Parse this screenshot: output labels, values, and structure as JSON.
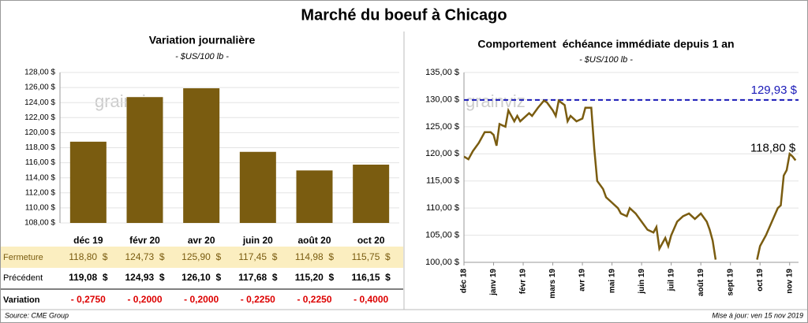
{
  "title": "Marché du boeuf à Chicago",
  "watermark": "grainviz",
  "chart_data": [
    {
      "type": "bar",
      "title": "Variation journalière",
      "subtitle": "- $US/100 lb -",
      "categories": [
        "déc 19",
        "févr 20",
        "avr 20",
        "juin 20",
        "août 20",
        "oct 20"
      ],
      "series": [
        {
          "name": "Fermeture",
          "color": "#7a5c10",
          "values": [
            118.8,
            124.73,
            125.9,
            117.45,
            114.98,
            115.75
          ],
          "value_labels": [
            "118,80  $",
            "124,73  $",
            "125,90  $",
            "117,45  $",
            "114,98  $",
            "115,75  $"
          ]
        }
      ],
      "ylim": [
        108,
        128
      ],
      "yticks": [
        {
          "value": 108,
          "label": "108,00 $"
        },
        {
          "value": 110,
          "label": "110,00 $"
        },
        {
          "value": 112,
          "label": "112,00 $"
        },
        {
          "value": 114,
          "label": "114,00 $"
        },
        {
          "value": 116,
          "label": "116,00 $"
        },
        {
          "value": 118,
          "label": "118,00 $"
        },
        {
          "value": 120,
          "label": "120,00 $"
        },
        {
          "value": 122,
          "label": "122,00 $"
        },
        {
          "value": 124,
          "label": "124,00 $"
        },
        {
          "value": 126,
          "label": "126,00 $"
        },
        {
          "value": 128,
          "label": "128,00 $"
        }
      ],
      "grid": true
    },
    {
      "type": "line",
      "title": "Comportement  échéance immédiate depuis 1 an",
      "subtitle": "- $US/100 lb -",
      "x": [
        0,
        0.15,
        0.3,
        0.5,
        0.7,
        0.9,
        1.0,
        1.1,
        1.2,
        1.4,
        1.5,
        1.6,
        1.7,
        1.8,
        1.9,
        2.0,
        2.2,
        2.3,
        2.5,
        2.7,
        2.8,
        3.0,
        3.1,
        3.2,
        3.4,
        3.5,
        3.6,
        3.8,
        4.0,
        4.1,
        4.3,
        4.4,
        4.5,
        4.7,
        4.8,
        5.0,
        5.2,
        5.3,
        5.5,
        5.6,
        5.8,
        6.0,
        6.2,
        6.4,
        6.5,
        6.6,
        6.7,
        6.8,
        6.9,
        7.0,
        7.2,
        7.4,
        7.6,
        7.8,
        8.0,
        8.2,
        8.3,
        8.4,
        8.5,
        8.6,
        9.8,
        9.9,
        10.0,
        10.2,
        10.4,
        10.6,
        10.7,
        10.8,
        10.9,
        11.0,
        11.1,
        11.2
      ],
      "series": [
        {
          "name": "Fermeture",
          "color": "#7a5c10",
          "values": [
            119.5,
            119,
            120.5,
            122,
            124,
            124,
            123.5,
            121.5,
            125.5,
            125,
            128,
            127,
            126,
            127,
            126,
            126.5,
            127.5,
            127,
            128.5,
            129.8,
            129.5,
            128,
            127,
            129.8,
            129,
            126,
            127,
            126,
            126.5,
            128.5,
            128.5,
            121,
            115,
            113.5,
            112,
            111,
            110,
            109,
            108.5,
            110,
            109,
            107.5,
            106,
            105.5,
            106.5,
            102.5,
            103.5,
            104.5,
            103,
            105,
            107.5,
            108.5,
            109,
            108,
            109,
            107.5,
            106,
            104,
            100.5,
            null,
            null,
            100.5,
            103,
            105,
            107.5,
            110,
            110.5,
            116,
            117,
            120,
            119.5,
            118.8
          ]
        }
      ],
      "xlim": [
        0,
        11.3
      ],
      "xticks": [
        {
          "value": 0,
          "label": "déc 18"
        },
        {
          "value": 1,
          "label": "janv 19"
        },
        {
          "value": 2,
          "label": "févr 19"
        },
        {
          "value": 3,
          "label": "mars 19"
        },
        {
          "value": 4,
          "label": "avr 19"
        },
        {
          "value": 5,
          "label": "mai 19"
        },
        {
          "value": 6,
          "label": "juin 19"
        },
        {
          "value": 7,
          "label": "juil 19"
        },
        {
          "value": 8,
          "label": "août 19"
        },
        {
          "value": 9,
          "label": "sept 19"
        },
        {
          "value": 10,
          "label": "oct 19"
        },
        {
          "value": 11,
          "label": "nov 19"
        }
      ],
      "ylim": [
        100,
        135
      ],
      "yticks": [
        {
          "value": 100,
          "label": "100,00 $"
        },
        {
          "value": 105,
          "label": "105,00 $"
        },
        {
          "value": 110,
          "label": "110,00 $"
        },
        {
          "value": 115,
          "label": "115,00 $"
        },
        {
          "value": 120,
          "label": "120,00 $"
        },
        {
          "value": 125,
          "label": "125,00 $"
        },
        {
          "value": 130,
          "label": "130,00 $"
        },
        {
          "value": 135,
          "label": "135,00 $"
        }
      ],
      "grid": true,
      "reference": {
        "value": 129.93,
        "label": "129,93 $",
        "color": "#1a1ab8"
      },
      "annotations": [
        {
          "x": 11.2,
          "y": 118.8,
          "label": "118,80 $"
        }
      ]
    }
  ],
  "table": {
    "rows": [
      {
        "label": "Précédent",
        "cells": [
          "119,08  $",
          "124,93  $",
          "126,10  $",
          "117,68  $",
          "115,20  $",
          "116,15  $"
        ]
      },
      {
        "label": "Variation",
        "cells": [
          "- 0,2750",
          "- 0,2000",
          "- 0,2000",
          "- 0,2250",
          "- 0,2250",
          "- 0,4000"
        ]
      }
    ]
  },
  "source": "Source: CME Group",
  "updated": "Mise à jour: ven 15 nov 2019"
}
